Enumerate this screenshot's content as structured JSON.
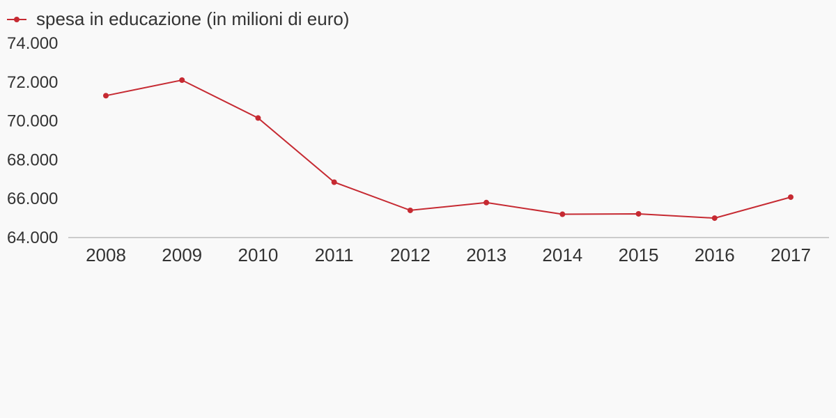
{
  "chart_data": {
    "type": "line",
    "legend_position": "top-left",
    "grid": false,
    "x": [
      "2008",
      "2009",
      "2010",
      "2011",
      "2012",
      "2013",
      "2014",
      "2015",
      "2016",
      "2017"
    ],
    "ylim": [
      64000,
      74000
    ],
    "y_ticks": [
      "64.000",
      "66.000",
      "68.000",
      "70.000",
      "72.000",
      "74.000"
    ],
    "series": [
      {
        "name": "spesa in educazione (in milioni di euro)",
        "color": "#c62a32",
        "values": [
          71300,
          72100,
          70150,
          66850,
          65400,
          65800,
          65200,
          65220,
          65000,
          66080
        ]
      }
    ]
  }
}
